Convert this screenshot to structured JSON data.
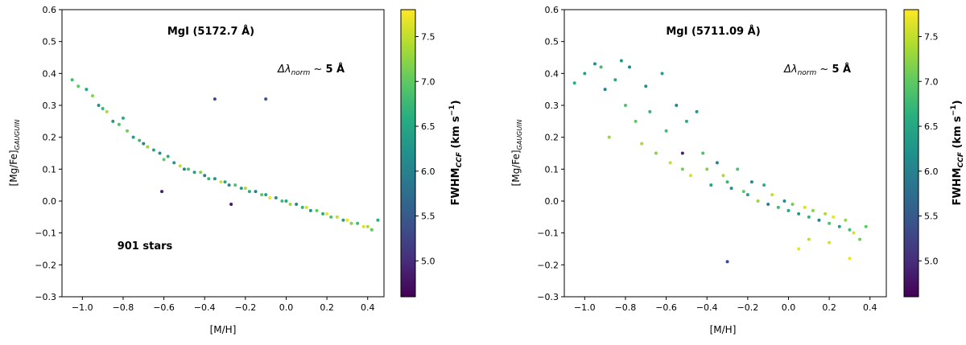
{
  "chart_data": [
    {
      "type": "scatter",
      "title": "MgI (5172.7 Å)",
      "annotation_prefix": "Δλ",
      "annotation_sub": "norm",
      "annotation_suffix": " ~ ",
      "annotation_value": "5 Å",
      "star_count_label": "901 stars",
      "xlabel": "[M/H]",
      "ylabel": "[Mg/Fe]",
      "ylabel_sub": "GAUGUIN",
      "xlim": [
        -1.1,
        0.48
      ],
      "ylim": [
        -0.3,
        0.6
      ],
      "xticks": [
        "−1.0",
        "−0.8",
        "−0.6",
        "−0.4",
        "−0.2",
        "0.0",
        "0.2",
        "0.4"
      ],
      "xtick_values": [
        -1.0,
        -0.8,
        -0.6,
        -0.4,
        -0.2,
        0.0,
        0.2,
        0.4
      ],
      "yticks": [
        "−0.3",
        "−0.2",
        "−0.1",
        "0.0",
        "0.1",
        "0.2",
        "0.3",
        "0.4",
        "0.5",
        "0.6"
      ],
      "ytick_values": [
        -0.3,
        -0.2,
        -0.1,
        0.0,
        0.1,
        0.2,
        0.3,
        0.4,
        0.5,
        0.6
      ],
      "colorbar": {
        "label": "FWHM",
        "label_sub": "CCF",
        "label_unit": " (km s",
        "label_exp": "−1",
        "label_close": ")",
        "range": [
          4.6,
          7.8
        ],
        "ticks": [
          "5.0",
          "5.5",
          "6.0",
          "6.5",
          "7.0",
          "7.5"
        ],
        "tick_values": [
          5.0,
          5.5,
          6.0,
          6.5,
          7.0,
          7.5
        ],
        "colormap": "viridis"
      },
      "series": [
        {
          "x": [
            -1.05,
            -1.02,
            -0.98,
            -0.95,
            -0.92,
            -0.9,
            -0.88,
            -0.85,
            -0.82,
            -0.8,
            -0.78,
            -0.75,
            -0.72,
            -0.7,
            -0.68,
            -0.65,
            -0.62,
            -0.6,
            -0.58,
            -0.55,
            -0.52,
            -0.5,
            -0.48,
            -0.45,
            -0.42,
            -0.4,
            -0.38,
            -0.35,
            -0.32,
            -0.3,
            -0.28,
            -0.25,
            -0.22,
            -0.2,
            -0.18,
            -0.15,
            -0.12,
            -0.1,
            -0.08,
            -0.05,
            -0.02,
            0.0,
            0.02,
            0.05,
            0.08,
            0.1,
            0.12,
            0.15,
            0.18,
            0.2,
            0.22,
            0.25,
            0.28,
            0.3,
            0.32,
            0.35,
            0.38,
            0.4,
            0.42,
            0.45,
            -0.35,
            -0.1,
            -0.27,
            -0.61
          ],
          "y": [
            0.38,
            0.36,
            0.35,
            0.33,
            0.3,
            0.29,
            0.28,
            0.25,
            0.24,
            0.26,
            0.22,
            0.2,
            0.19,
            0.18,
            0.17,
            0.16,
            0.15,
            0.13,
            0.14,
            0.12,
            0.11,
            0.1,
            0.1,
            0.09,
            0.09,
            0.08,
            0.07,
            0.07,
            0.06,
            0.06,
            0.05,
            0.05,
            0.04,
            0.04,
            0.03,
            0.03,
            0.02,
            0.02,
            0.01,
            0.01,
            0.0,
            0.0,
            -0.01,
            -0.01,
            -0.02,
            -0.02,
            -0.03,
            -0.03,
            -0.04,
            -0.04,
            -0.05,
            -0.05,
            -0.06,
            -0.06,
            -0.07,
            -0.07,
            -0.08,
            -0.08,
            -0.09,
            -0.06,
            0.32,
            0.32,
            -0.01,
            0.03
          ],
          "c": [
            6.8,
            7.0,
            6.5,
            7.2,
            6.2,
            6.7,
            7.4,
            6.3,
            6.9,
            6.6,
            7.1,
            6.4,
            6.8,
            6.0,
            7.3,
            6.5,
            6.2,
            7.0,
            6.6,
            6.3,
            7.5,
            6.1,
            6.9,
            6.4,
            7.2,
            6.0,
            6.7,
            6.2,
            7.6,
            6.5,
            6.1,
            6.9,
            6.3,
            7.4,
            6.6,
            6.0,
            7.0,
            6.4,
            7.7,
            6.2,
            6.8,
            6.5,
            7.3,
            6.1,
            6.7,
            7.6,
            6.3,
            7.0,
            6.6,
            7.7,
            6.9,
            7.5,
            6.4,
            7.7,
            7.2,
            6.8,
            7.6,
            7.4,
            7.0,
            6.6,
            5.3,
            5.4,
            4.8,
            4.9
          ]
        }
      ]
    },
    {
      "type": "scatter",
      "title": "MgI (5711.09 Å)",
      "annotation_prefix": "Δλ",
      "annotation_sub": "norm",
      "annotation_suffix": " ~ ",
      "annotation_value": "5 Å",
      "xlabel": "[M/H]",
      "ylabel": "[Mg/Fe]",
      "ylabel_sub": "GAUGUIN",
      "xlim": [
        -1.1,
        0.48
      ],
      "ylim": [
        -0.3,
        0.6
      ],
      "xticks": [
        "−1.0",
        "−0.8",
        "−0.6",
        "−0.4",
        "−0.2",
        "0.0",
        "0.2",
        "0.4"
      ],
      "xtick_values": [
        -1.0,
        -0.8,
        -0.6,
        -0.4,
        -0.2,
        0.0,
        0.2,
        0.4
      ],
      "yticks": [
        "−0.3",
        "−0.2",
        "−0.1",
        "0.0",
        "0.1",
        "0.2",
        "0.3",
        "0.4",
        "0.5",
        "0.6"
      ],
      "ytick_values": [
        -0.3,
        -0.2,
        -0.1,
        0.0,
        0.1,
        0.2,
        0.3,
        0.4,
        0.5,
        0.6
      ],
      "colorbar": {
        "label": "FWHM",
        "label_sub": "CCF",
        "label_unit": " (km s",
        "label_exp": "−1",
        "label_close": ")",
        "range": [
          4.6,
          7.8
        ],
        "ticks": [
          "5.0",
          "5.5",
          "6.0",
          "6.5",
          "7.0",
          "7.5"
        ],
        "tick_values": [
          5.0,
          5.5,
          6.0,
          6.5,
          7.0,
          7.5
        ],
        "colormap": "viridis"
      },
      "series": [
        {
          "x": [
            -1.05,
            -1.0,
            -0.95,
            -0.92,
            -0.9,
            -0.88,
            -0.85,
            -0.82,
            -0.8,
            -0.78,
            -0.75,
            -0.72,
            -0.7,
            -0.68,
            -0.65,
            -0.62,
            -0.6,
            -0.58,
            -0.55,
            -0.52,
            -0.5,
            -0.48,
            -0.45,
            -0.42,
            -0.4,
            -0.38,
            -0.35,
            -0.32,
            -0.3,
            -0.28,
            -0.25,
            -0.22,
            -0.2,
            -0.18,
            -0.15,
            -0.12,
            -0.1,
            -0.08,
            -0.05,
            -0.02,
            0.0,
            0.02,
            0.05,
            0.08,
            0.1,
            0.12,
            0.15,
            0.18,
            0.2,
            0.22,
            0.25,
            0.28,
            0.3,
            0.32,
            0.35,
            0.38,
            0.05,
            0.1,
            0.2,
            0.3,
            -0.3,
            -0.52
          ],
          "y": [
            0.37,
            0.4,
            0.43,
            0.42,
            0.35,
            0.2,
            0.38,
            0.44,
            0.3,
            0.42,
            0.25,
            0.18,
            0.36,
            0.28,
            0.15,
            0.4,
            0.22,
            0.12,
            0.3,
            0.1,
            0.25,
            0.08,
            0.28,
            0.15,
            0.1,
            0.05,
            0.12,
            0.08,
            0.06,
            0.04,
            0.1,
            0.03,
            0.02,
            0.06,
            0.0,
            0.05,
            -0.01,
            0.02,
            -0.02,
            0.0,
            -0.03,
            -0.01,
            -0.04,
            -0.02,
            -0.05,
            -0.03,
            -0.06,
            -0.04,
            -0.07,
            -0.05,
            -0.08,
            -0.06,
            -0.09,
            -0.1,
            -0.12,
            -0.08,
            -0.15,
            -0.12,
            -0.13,
            -0.18,
            -0.19,
            0.15
          ],
          "c": [
            6.6,
            6.4,
            6.2,
            6.8,
            6.0,
            7.3,
            6.5,
            6.3,
            6.9,
            6.1,
            7.0,
            7.4,
            6.2,
            6.7,
            7.2,
            6.4,
            6.8,
            7.5,
            6.1,
            7.1,
            6.6,
            7.6,
            6.3,
            6.9,
            7.2,
            6.5,
            6.0,
            7.4,
            6.7,
            6.2,
            6.9,
            7.0,
            6.4,
            6.1,
            7.3,
            6.6,
            6.0,
            7.5,
            6.8,
            6.2,
            6.5,
            7.1,
            6.3,
            7.6,
            6.7,
            7.2,
            6.0,
            7.4,
            6.9,
            7.7,
            6.4,
            7.3,
            6.8,
            7.6,
            7.1,
            7.0,
            7.7,
            7.5,
            7.6,
            7.7,
            5.3,
            4.9
          ]
        }
      ]
    }
  ]
}
